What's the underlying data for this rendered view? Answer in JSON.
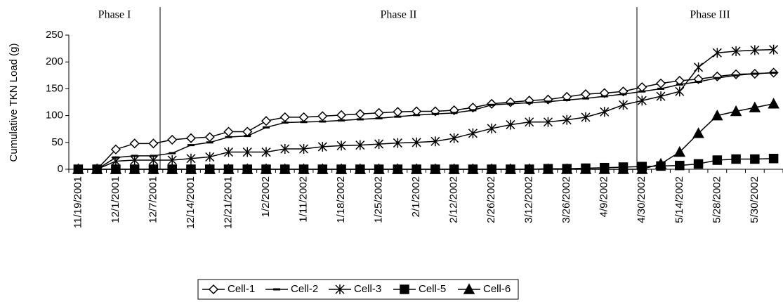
{
  "chart_data": {
    "type": "line",
    "y_label": "Cumulative TKN Load (g)",
    "phases": [
      "Phase I",
      "Phase II",
      "Phase III"
    ],
    "categories": [
      "11/19/2001",
      null,
      "12/1/2001",
      null,
      "12/7/2001",
      null,
      "12/14/2001",
      null,
      "12/21/2001",
      null,
      "1/2/2002",
      null,
      "1/11/2002",
      null,
      "1/18/2002",
      null,
      "1/25/2002",
      null,
      "2/1/2002",
      null,
      "2/12/2002",
      null,
      "2/26/2002",
      null,
      "3/12/2002",
      null,
      "3/26/2002",
      null,
      "4/9/2002",
      null,
      "4/30/2002",
      null,
      "5/14/2002",
      null,
      "5/28/2002",
      null,
      "5/30/2002",
      null
    ],
    "ylim": [
      0,
      250
    ],
    "yticks": [
      0,
      50,
      100,
      150,
      200,
      250
    ],
    "grid": false,
    "legend": "bottom",
    "series": [
      {
        "name": "Cell-1",
        "color": "#000000",
        "marker": "open-diamond",
        "values": [
          0,
          0,
          37,
          48,
          48,
          55,
          58,
          60,
          70,
          70,
          90,
          97,
          97,
          99,
          101,
          103,
          105,
          107,
          108,
          108,
          110,
          115,
          122,
          125,
          128,
          130,
          135,
          140,
          142,
          145,
          153,
          160,
          165,
          168,
          173,
          177,
          178,
          180
        ]
      },
      {
        "name": "Cell-2",
        "color": "#000000",
        "marker": "dash",
        "values": [
          0,
          0,
          22,
          25,
          25,
          30,
          45,
          50,
          60,
          62,
          78,
          87,
          88,
          89,
          91,
          93,
          95,
          98,
          101,
          103,
          105,
          110,
          120,
          122,
          124,
          126,
          129,
          132,
          136,
          140,
          145,
          150,
          158,
          163,
          170,
          175,
          178,
          180
        ]
      },
      {
        "name": "Cell-3",
        "color": "#000000",
        "marker": "star",
        "values": [
          0,
          0,
          15,
          17,
          17,
          17,
          20,
          23,
          32,
          32,
          32,
          38,
          38,
          42,
          44,
          45,
          47,
          49,
          50,
          52,
          58,
          67,
          76,
          83,
          88,
          88,
          92,
          97,
          107,
          120,
          128,
          136,
          145,
          190,
          217,
          220,
          222,
          223
        ]
      },
      {
        "name": "Cell-5",
        "color": "#000000",
        "marker": "square",
        "values": [
          0,
          0,
          0,
          0,
          0,
          0,
          0,
          0,
          0,
          0,
          0,
          0,
          0,
          0,
          0,
          0,
          0,
          0,
          0,
          0,
          0,
          0,
          0,
          0,
          0,
          1,
          1,
          2,
          3,
          4,
          5,
          6,
          7,
          10,
          17,
          19,
          19,
          20
        ]
      },
      {
        "name": "Cell-6",
        "color": "#000000",
        "marker": "triangle",
        "values": [
          0,
          0,
          0,
          0,
          0,
          0,
          0,
          0,
          0,
          0,
          0,
          0,
          0,
          0,
          0,
          0,
          0,
          0,
          0,
          0,
          0,
          0,
          0,
          0,
          0,
          0,
          0,
          0,
          0,
          0,
          0,
          10,
          32,
          67,
          100,
          108,
          115,
          122
        ]
      }
    ]
  }
}
